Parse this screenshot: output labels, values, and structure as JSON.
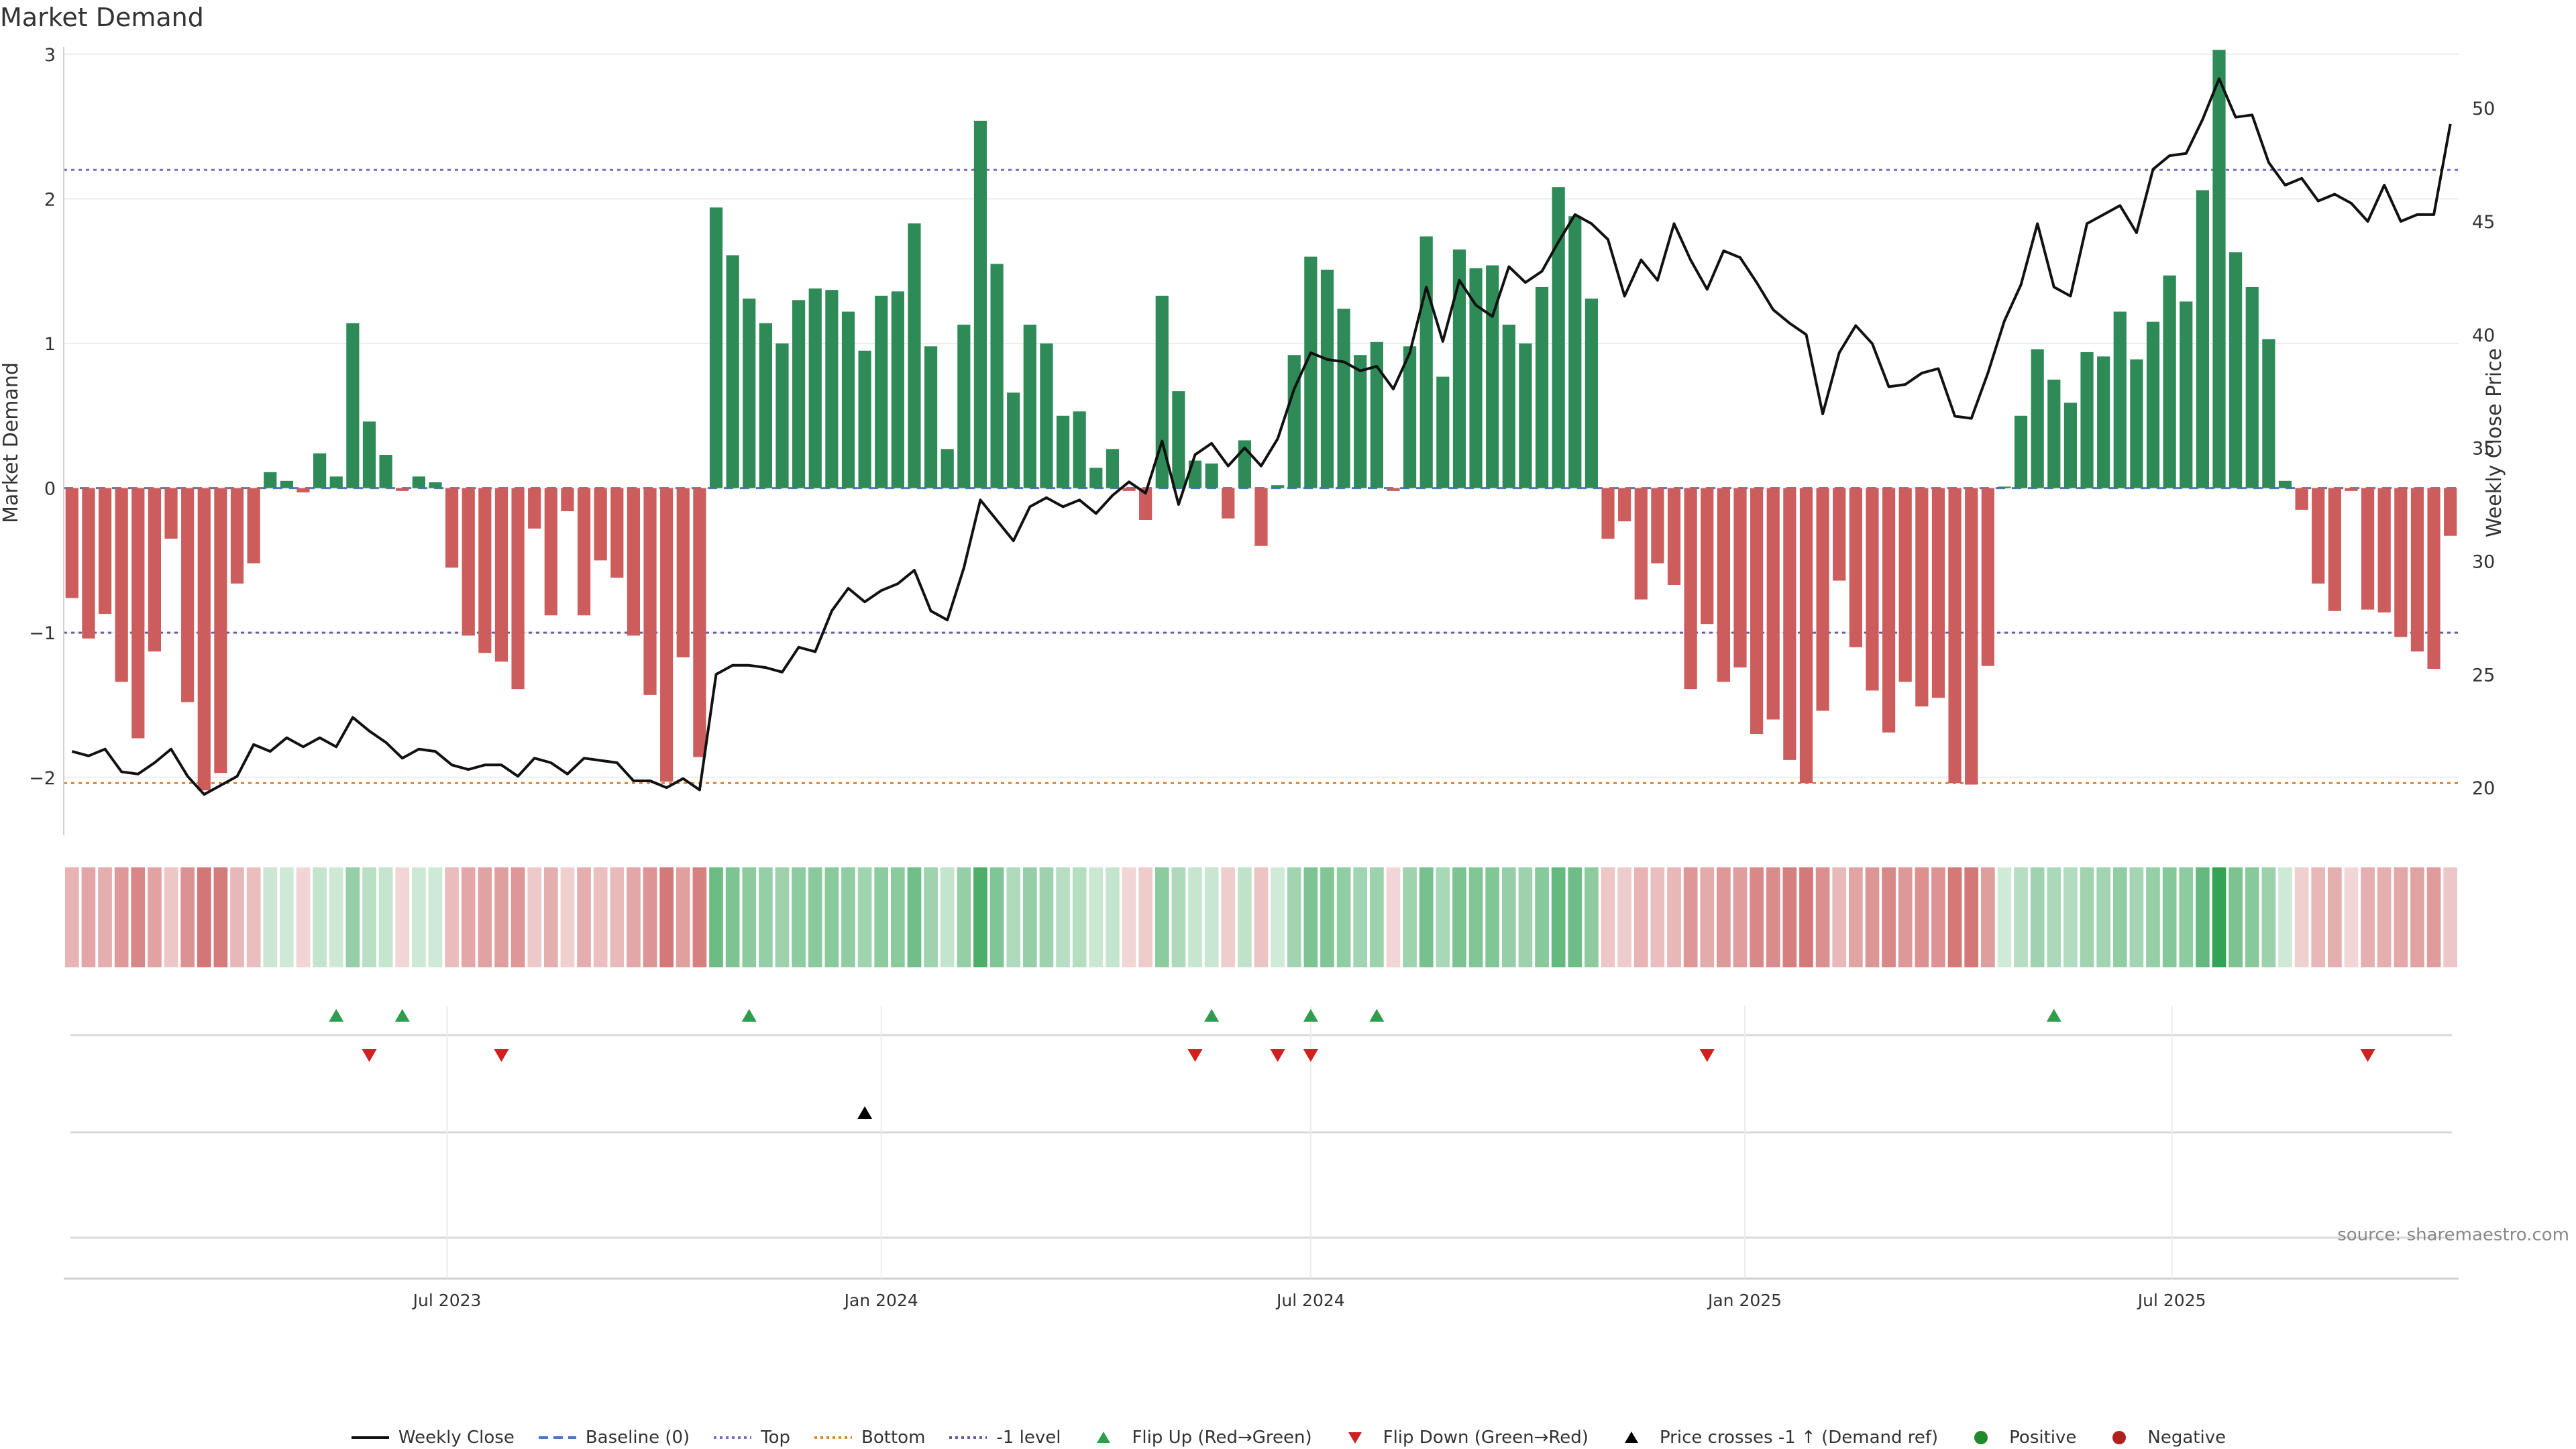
{
  "title": "Market Demand",
  "source": "source: sharemaestro.com",
  "colors": {
    "positive": "#2e8b57",
    "negative": "#cd5c5c",
    "price": "#111111",
    "baseline": "#4a78c2",
    "top": "#7b68c9",
    "bottom": "#e0882a",
    "minus_one": "#6d5a9a",
    "flip_up": "#2e9e4e",
    "flip_down": "#cc2222",
    "cross": "#000000",
    "pos_dot": "#1f8a2a",
    "neg_dot": "#b02020"
  },
  "legend": [
    {
      "label": "Weekly Close",
      "kind": "line",
      "color": "#111111"
    },
    {
      "label": "Baseline (0)",
      "kind": "dash",
      "color": "#4a78c2"
    },
    {
      "label": "Top",
      "kind": "dot",
      "color": "#7b68c9"
    },
    {
      "label": "Bottom",
      "kind": "dot",
      "color": "#e0882a"
    },
    {
      "label": "-1 level",
      "kind": "dot",
      "color": "#6d5a9a"
    },
    {
      "label": "Flip Up (Red→Green)",
      "kind": "tri-up",
      "color": "#2e9e4e"
    },
    {
      "label": "Flip Down (Green→Red)",
      "kind": "tri-down",
      "color": "#cc2222"
    },
    {
      "label": "Price crosses -1 ↑ (Demand ref)",
      "kind": "tri-up",
      "color": "#000000"
    },
    {
      "label": "Positive",
      "kind": "circle",
      "color": "#1f8a2a"
    },
    {
      "label": "Negative",
      "kind": "circle",
      "color": "#b02020"
    }
  ],
  "chart_data": {
    "type": "bar",
    "xlabel": "",
    "ylabel": "Market Demand",
    "y2label": "Weekly Close Price",
    "x_start": "2023-01-23",
    "x_end": "2025-10-27",
    "ylim": [
      -2.4,
      3.05
    ],
    "y_ticks": [
      -2,
      -1,
      0,
      1,
      2,
      3
    ],
    "y2lim": [
      17.9,
      52.7
    ],
    "y2_ticks": [
      20,
      25,
      30,
      35,
      40,
      45,
      50
    ],
    "x_ticks": [
      {
        "date": "2023-07-01",
        "label": "Jul 2023"
      },
      {
        "date": "2024-01-01",
        "label": "Jan 2024"
      },
      {
        "date": "2024-07-01",
        "label": "Jul 2024"
      },
      {
        "date": "2025-01-01",
        "label": "Jan 2025"
      },
      {
        "date": "2025-07-01",
        "label": "Jul 2025"
      }
    ],
    "levels": {
      "baseline": 0,
      "top": 2.2,
      "bottom": -2.04,
      "minus_one": -1
    },
    "grid": true,
    "legend_position": "bottom",
    "weeks": [
      "2023-01-23",
      "2023-01-30",
      "2023-02-06",
      "2023-02-13",
      "2023-02-20",
      "2023-02-27",
      "2023-03-06",
      "2023-03-13",
      "2023-03-20",
      "2023-03-27",
      "2023-04-03",
      "2023-04-10",
      "2023-04-17",
      "2023-04-24",
      "2023-05-01",
      "2023-05-08",
      "2023-05-15",
      "2023-05-22",
      "2023-05-29",
      "2023-06-05",
      "2023-06-12",
      "2023-06-19",
      "2023-06-26",
      "2023-07-03",
      "2023-07-10",
      "2023-07-17",
      "2023-07-24",
      "2023-07-31",
      "2023-08-07",
      "2023-08-14",
      "2023-08-21",
      "2023-08-28",
      "2023-09-04",
      "2023-09-11",
      "2023-09-18",
      "2023-09-25",
      "2023-10-02",
      "2023-10-09",
      "2023-10-16",
      "2023-10-23",
      "2023-10-30",
      "2023-11-06",
      "2023-11-13",
      "2023-11-20",
      "2023-11-27",
      "2023-12-04",
      "2023-12-11",
      "2023-12-18",
      "2023-12-25",
      "2024-01-01",
      "2024-01-08",
      "2024-01-15",
      "2024-01-22",
      "2024-01-29",
      "2024-02-05",
      "2024-02-12",
      "2024-02-19",
      "2024-02-26",
      "2024-03-04",
      "2024-03-11",
      "2024-03-18",
      "2024-03-25",
      "2024-04-01",
      "2024-04-08",
      "2024-04-15",
      "2024-04-22",
      "2024-04-29",
      "2024-05-06",
      "2024-05-13",
      "2024-05-20",
      "2024-05-27",
      "2024-06-03",
      "2024-06-10",
      "2024-06-17",
      "2024-06-24",
      "2024-07-01",
      "2024-07-08",
      "2024-07-15",
      "2024-07-22",
      "2024-07-29",
      "2024-08-05",
      "2024-08-12",
      "2024-08-19",
      "2024-08-26",
      "2024-09-02",
      "2024-09-09",
      "2024-09-16",
      "2024-09-23",
      "2024-09-30",
      "2024-10-07",
      "2024-10-14",
      "2024-10-21",
      "2024-10-28",
      "2024-11-04",
      "2024-11-11",
      "2024-11-18",
      "2024-11-25",
      "2024-12-02",
      "2024-12-09",
      "2024-12-16",
      "2024-12-23",
      "2024-12-30",
      "2025-01-06",
      "2025-01-13",
      "2025-01-20",
      "2025-01-27",
      "2025-02-03",
      "2025-02-10",
      "2025-02-17",
      "2025-02-24",
      "2025-03-03",
      "2025-03-10",
      "2025-03-17",
      "2025-03-24",
      "2025-03-31",
      "2025-04-07",
      "2025-04-14",
      "2025-04-21",
      "2025-04-28",
      "2025-05-05",
      "2025-05-12",
      "2025-05-19",
      "2025-05-26",
      "2025-06-02",
      "2025-06-09",
      "2025-06-16",
      "2025-06-23",
      "2025-06-30",
      "2025-07-07",
      "2025-07-14",
      "2025-07-21",
      "2025-07-28",
      "2025-08-04",
      "2025-08-11",
      "2025-08-18",
      "2025-08-25",
      "2025-09-01",
      "2025-09-08",
      "2025-09-15",
      "2025-09-22",
      "2025-09-29",
      "2025-10-06",
      "2025-10-13",
      "2025-10-20",
      "2025-10-27"
    ],
    "demand": [
      -0.76,
      -1.04,
      -0.87,
      -1.34,
      -1.73,
      -1.13,
      -0.35,
      -1.48,
      -2.09,
      -1.97,
      -0.66,
      -0.52,
      0.11,
      0.05,
      -0.03,
      0.24,
      0.08,
      1.14,
      0.46,
      0.23,
      -0.02,
      0.08,
      0.04,
      -0.55,
      -1.02,
      -1.14,
      -1.2,
      -1.39,
      -0.28,
      -0.88,
      -0.16,
      -0.88,
      -0.5,
      -0.62,
      -1.02,
      -1.43,
      -2.03,
      -1.17,
      -1.86,
      1.94,
      1.61,
      1.31,
      1.14,
      1.0,
      1.3,
      1.38,
      1.37,
      1.22,
      0.95,
      1.33,
      1.36,
      1.83,
      0.98,
      0.27,
      1.13,
      2.54,
      1.55,
      0.66,
      1.13,
      1.0,
      0.5,
      0.53,
      0.14,
      0.27,
      -0.02,
      -0.22,
      1.33,
      0.67,
      0.19,
      0.17,
      -0.21,
      0.33,
      -0.4,
      0.02,
      0.92,
      1.6,
      1.51,
      1.24,
      0.92,
      1.01,
      -0.02,
      0.98,
      1.74,
      0.77,
      1.65,
      1.52,
      1.54,
      1.13,
      1.0,
      1.39,
      2.08,
      1.88,
      1.31,
      -0.35,
      -0.23,
      -0.77,
      -0.52,
      -0.67,
      -1.39,
      -0.94,
      -1.34,
      -1.24,
      -1.7,
      -1.6,
      -1.88,
      -2.04,
      -1.54,
      -0.64,
      -1.1,
      -1.4,
      -1.69,
      -1.34,
      -1.51,
      -1.45,
      -2.04,
      -2.05,
      -1.23,
      0.01,
      0.5,
      0.96,
      0.75,
      0.59,
      0.94,
      0.91,
      1.22,
      0.89,
      1.15,
      1.47,
      1.29,
      2.06,
      3.03,
      1.63,
      1.39,
      1.03,
      0.05,
      -0.15,
      -0.66,
      -0.85,
      -0.02,
      -0.84,
      -0.86,
      -1.03,
      -1.13,
      -1.25,
      -0.33
    ],
    "close": [
      21.6,
      21.4,
      21.7,
      20.7,
      20.6,
      21.1,
      21.7,
      20.5,
      19.7,
      20.1,
      20.5,
      21.9,
      21.6,
      22.2,
      21.8,
      22.2,
      21.8,
      23.1,
      22.5,
      22.0,
      21.3,
      21.7,
      21.6,
      21.0,
      20.8,
      21.0,
      21.0,
      20.5,
      21.3,
      21.1,
      20.6,
      21.3,
      21.2,
      21.1,
      20.3,
      20.3,
      20.0,
      20.4,
      19.9,
      25.0,
      25.4,
      25.4,
      25.3,
      25.1,
      26.2,
      26.0,
      27.8,
      28.8,
      28.2,
      28.7,
      29.0,
      29.6,
      27.8,
      27.4,
      29.7,
      32.7,
      31.8,
      30.9,
      32.4,
      32.8,
      32.4,
      32.7,
      32.1,
      32.9,
      33.5,
      33.0,
      35.3,
      32.5,
      34.7,
      35.2,
      34.2,
      35.0,
      34.2,
      35.4,
      37.6,
      39.2,
      38.9,
      38.8,
      38.4,
      38.6,
      37.6,
      39.2,
      42.1,
      39.7,
      42.4,
      41.3,
      40.8,
      43.0,
      42.3,
      42.8,
      44.1,
      45.3,
      44.9,
      44.2,
      41.7,
      43.3,
      42.4,
      44.9,
      43.3,
      42.0,
      43.7,
      43.4,
      42.3,
      41.1,
      40.5,
      40.0,
      36.5,
      39.2,
      40.4,
      39.6,
      37.7,
      37.8,
      38.3,
      38.5,
      36.4,
      36.3,
      38.3,
      40.6,
      42.2,
      44.9,
      42.1,
      41.7,
      44.9,
      45.3,
      45.7,
      44.5,
      47.3,
      47.9,
      48.0,
      49.5,
      51.3,
      49.6,
      49.7,
      47.6,
      46.6,
      46.9,
      45.9,
      46.2,
      45.8,
      45.0,
      46.6,
      45.0,
      45.3,
      45.3,
      49.3
    ],
    "flip_up": [
      "2023-05-15",
      "2023-06-12",
      "2023-11-06",
      "2024-05-20",
      "2024-07-01",
      "2024-07-29",
      "2025-05-12"
    ],
    "flip_down": [
      "2023-05-29",
      "2023-07-24",
      "2024-05-13",
      "2024-06-17",
      "2024-07-01",
      "2024-12-16",
      "2025-09-22"
    ],
    "price_cross": [
      "2023-12-25"
    ]
  }
}
